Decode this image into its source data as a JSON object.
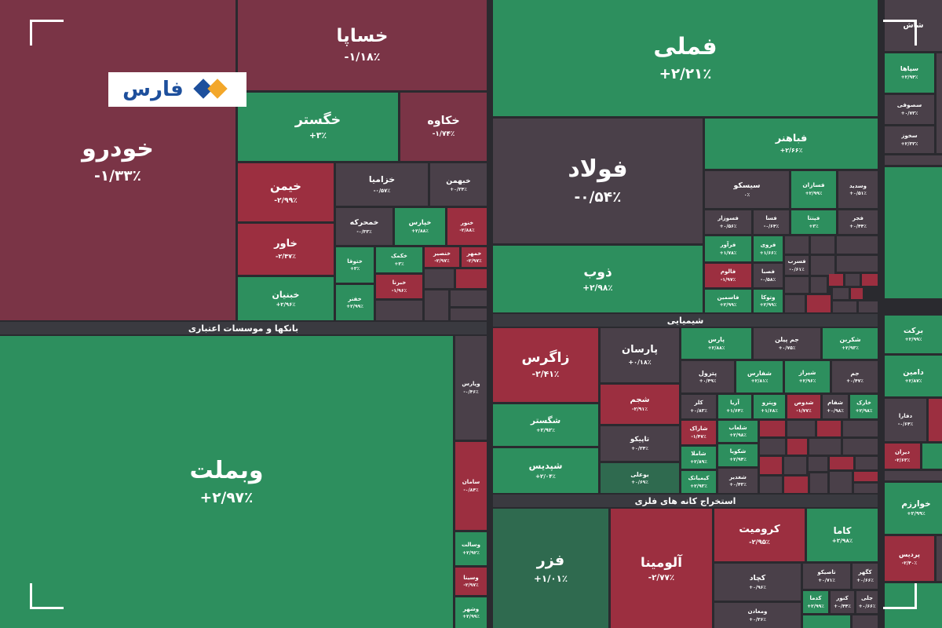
{
  "logo": {
    "text": "فارس"
  },
  "sections": [
    {
      "title": "بانکها و موسسات اعتباری"
    },
    {
      "title": "شیمیایی"
    },
    {
      "title": "استخراج کانه های فلزی"
    }
  ],
  "tiles": [
    {
      "label": "خودرو",
      "change": "-۱/۳۳٪"
    },
    {
      "label": "خساپا",
      "change": "-۱/۱۸٪"
    },
    {
      "label": "خگستر",
      "change": "+۳٪"
    },
    {
      "label": "خکاوه",
      "change": "-۱/۷۴٪"
    },
    {
      "label": "خیمن",
      "change": "-۲/۹۹٪"
    },
    {
      "label": "خاور",
      "change": "-۲/۴۷٪"
    },
    {
      "label": "خبنیان",
      "change": "+۲/۹۶٪"
    },
    {
      "label": "خزامیا",
      "change": "-۰/۵۷٪"
    },
    {
      "label": "خبهمن",
      "change": "+۰/۳۴٪"
    },
    {
      "label": "خمحرکه",
      "change": "-۰/۳۳٪"
    },
    {
      "label": "خپارس",
      "change": "+۲/۸۸٪"
    },
    {
      "label": "خنور",
      "change": "-۲/۸۸٪"
    },
    {
      "label": "ختوقا",
      "change": "+۳٪"
    },
    {
      "label": "خکمک",
      "change": "+۳٪"
    },
    {
      "label": "خنصیر",
      "change": "-۲/۹۷٪"
    },
    {
      "label": "خمهر",
      "change": "-۲/۹۷٪"
    },
    {
      "label": "خفنر",
      "change": "+۲/۹۹٪"
    },
    {
      "label": "خبرنا",
      "change": "-۱/۹۶٪"
    },
    {
      "label": "وبملت",
      "change": "+۲/۹۷٪"
    },
    {
      "label": "وپارس",
      "change": "-۰/۴۶٪"
    },
    {
      "label": "سامان",
      "change": "-۰/۸۴٪"
    },
    {
      "label": "وسالت",
      "change": "+۲/۹۲٪"
    },
    {
      "label": "وسینا",
      "change": "-۲/۹۷٪"
    },
    {
      "label": "وشهر",
      "change": "+۲/۹۹٪"
    },
    {
      "label": "فملی",
      "change": "+۲/۲۱٪"
    },
    {
      "label": "فولاد",
      "change": "-۰/۵۴٪"
    },
    {
      "label": "ذوب",
      "change": "+۲/۹۸٪"
    },
    {
      "label": "فباهنر",
      "change": "+۲/۶۶٪"
    },
    {
      "label": "سیسکو",
      "change": "۰٪"
    },
    {
      "label": "فسازان",
      "change": "+۲/۹۹٪"
    },
    {
      "label": "وسدید",
      "change": "+۰/۵۱٪"
    },
    {
      "label": "فسوزار",
      "change": "+۰/۵۶٪"
    },
    {
      "label": "فسا",
      "change": "-۰/۶۴٪"
    },
    {
      "label": "فپنتا",
      "change": "+۳٪"
    },
    {
      "label": "فجر",
      "change": "+۰/۴۴٪"
    },
    {
      "label": "فرآور",
      "change": "+۱/۷۸٪"
    },
    {
      "label": "فروی",
      "change": "+۱/۶۶٪"
    },
    {
      "label": "فالوم",
      "change": "-۱/۹۷٪"
    },
    {
      "label": "فصبا",
      "change": "-۰/۵۸٪"
    },
    {
      "label": "فاسمین",
      "change": "+۲/۹۹٪"
    },
    {
      "label": "وتوکا",
      "change": "+۲/۹۹٪"
    },
    {
      "label": "فسرب",
      "change": "-۰/۶۱٪"
    },
    {
      "label": "زاگرس",
      "change": "-۲/۴۱٪"
    },
    {
      "label": "شگستر",
      "change": "+۲/۹۲٪"
    },
    {
      "label": "شپدیس",
      "change": "+۲/۰۴٪"
    },
    {
      "label": "پارسان",
      "change": "+۰/۱۸٪"
    },
    {
      "label": "شجم",
      "change": "-۲/۹۱٪"
    },
    {
      "label": "تاپیکو",
      "change": "+۰/۳۴٪"
    },
    {
      "label": "بوعلی",
      "change": "+۰/۶۹٪"
    },
    {
      "label": "پارس",
      "change": "+۲/۸۸٪"
    },
    {
      "label": "جم پیلن",
      "change": "+۰/۷۵٪"
    },
    {
      "label": "شکربن",
      "change": "+۲/۹۳٪"
    },
    {
      "label": "پترول",
      "change": "+۰/۴۹٪"
    },
    {
      "label": "شفارس",
      "change": "+۲/۸۱٪"
    },
    {
      "label": "شیراز",
      "change": "+۲/۹۶٪"
    },
    {
      "label": "جم",
      "change": "+۰/۴۷٪"
    },
    {
      "label": "کلر",
      "change": "+۰/۸۳٪"
    },
    {
      "label": "آریا",
      "change": "+۱/۶۴٪"
    },
    {
      "label": "وپترو",
      "change": "+۱/۶۸٪"
    },
    {
      "label": "شدوص",
      "change": "-۱/۷۷٪"
    },
    {
      "label": "شفام",
      "change": "+۰/۹۸٪"
    },
    {
      "label": "خارک",
      "change": "+۲/۹۸٪"
    },
    {
      "label": "شاراک",
      "change": "-۱/۴۷٪"
    },
    {
      "label": "شاملا",
      "change": "+۲/۸۹٪"
    },
    {
      "label": "کیمیاتک",
      "change": "+۲/۹۳٪"
    },
    {
      "label": "شلعاب",
      "change": "+۲/۹۸٪"
    },
    {
      "label": "شکویا",
      "change": "+۲/۹۴٪"
    },
    {
      "label": "شغدیر",
      "change": "+۰/۴۳٪"
    },
    {
      "label": "فزر",
      "change": "+۱/۰۱٪"
    },
    {
      "label": "آلومینا",
      "change": "-۲/۷۷٪"
    },
    {
      "label": "کرومیت",
      "change": "-۲/۹۵٪"
    },
    {
      "label": "کاما",
      "change": "+۲/۹۸٪"
    },
    {
      "label": "کچاد",
      "change": "+۰/۹۶٪"
    },
    {
      "label": "تاصیکو",
      "change": "+۰/۷۱٪"
    },
    {
      "label": "کگهر",
      "change": "+۰/۶۶٪"
    },
    {
      "label": "ومعادن",
      "change": "+۰/۳۶٪"
    },
    {
      "label": "کدما",
      "change": "+۲/۹۹٪"
    },
    {
      "label": "کنور",
      "change": "+۰/۴۴٪"
    },
    {
      "label": "جلی",
      "change": "+۰/۶۶٪"
    },
    {
      "label": "شاش"
    },
    {
      "label": "سپاها",
      "change": "+۲/۹۴٪"
    },
    {
      "label": "سصوفی",
      "change": "+۰/۷۳٪"
    },
    {
      "label": "سخوز",
      "change": "+۲/۳۳٪"
    },
    {
      "label": "برکت",
      "change": "+۲/۹۹٪"
    },
    {
      "label": "دامین",
      "change": "+۲/۸۷٪"
    },
    {
      "label": "دفارا",
      "change": "-۰/۶۴٪"
    },
    {
      "label": "دیران",
      "change": "-۲/۶۳٪"
    },
    {
      "label": "خوارزم",
      "change": "+۲/۹۹٪"
    },
    {
      "label": "پردیس",
      "change": "-۲/۴۰٪"
    }
  ]
}
